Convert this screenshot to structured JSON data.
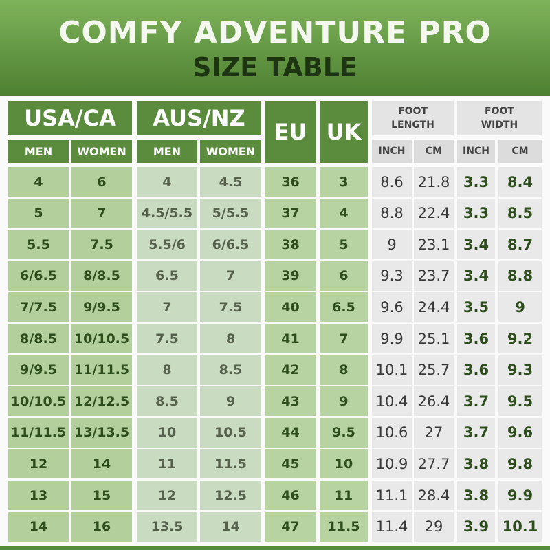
{
  "header": {
    "title": "COMFY ADVENTURE PRO",
    "subtitle": "SIZE TABLE"
  },
  "table": {
    "groups": [
      "USA/CA",
      "AUS/NZ",
      "EU",
      "UK",
      "FOOT LENGTH",
      "FOOT WIDTH"
    ],
    "subheaders": [
      "MEN",
      "WOMEN",
      "MEN",
      "WOMEN",
      "INCH",
      "CM",
      "INCH",
      "CM"
    ],
    "rows": [
      [
        "4",
        "6",
        "4",
        "4.5",
        "36",
        "3",
        "8.6",
        "21.8",
        "3.3",
        "8.4"
      ],
      [
        "5",
        "7",
        "4.5/5.5",
        "5/5.5",
        "37",
        "4",
        "8.8",
        "22.4",
        "3.3",
        "8.5"
      ],
      [
        "5.5",
        "7.5",
        "5.5/6",
        "6/6.5",
        "38",
        "5",
        "9",
        "23.1",
        "3.4",
        "8.7"
      ],
      [
        "6/6.5",
        "8/8.5",
        "6.5",
        "7",
        "39",
        "6",
        "9.3",
        "23.7",
        "3.4",
        "8.8"
      ],
      [
        "7/7.5",
        "9/9.5",
        "7",
        "7.5",
        "40",
        "6.5",
        "9.6",
        "24.4",
        "3.5",
        "9"
      ],
      [
        "8/8.5",
        "10/10.5",
        "7.5",
        "8",
        "41",
        "7",
        "9.9",
        "25.1",
        "3.6",
        "9.2"
      ],
      [
        "9/9.5",
        "11/11.5",
        "8",
        "8.5",
        "42",
        "8",
        "10.1",
        "25.7",
        "3.6",
        "9.3"
      ],
      [
        "10/10.5",
        "12/12.5",
        "8.5",
        "9",
        "43",
        "9",
        "10.4",
        "26.4",
        "3.7",
        "9.5"
      ],
      [
        "11/11.5",
        "13/13.5",
        "10",
        "10.5",
        "44",
        "9.5",
        "10.6",
        "27",
        "3.7",
        "9.6"
      ],
      [
        "12",
        "14",
        "11",
        "11.5",
        "45",
        "10",
        "10.9",
        "27.7",
        "3.8",
        "9.8"
      ],
      [
        "13",
        "15",
        "12",
        "12.5",
        "46",
        "11",
        "11.1",
        "28.4",
        "3.8",
        "9.9"
      ],
      [
        "14",
        "16",
        "13.5",
        "14",
        "47",
        "11.5",
        "11.4",
        "29",
        "3.9",
        "10.1"
      ]
    ]
  }
}
